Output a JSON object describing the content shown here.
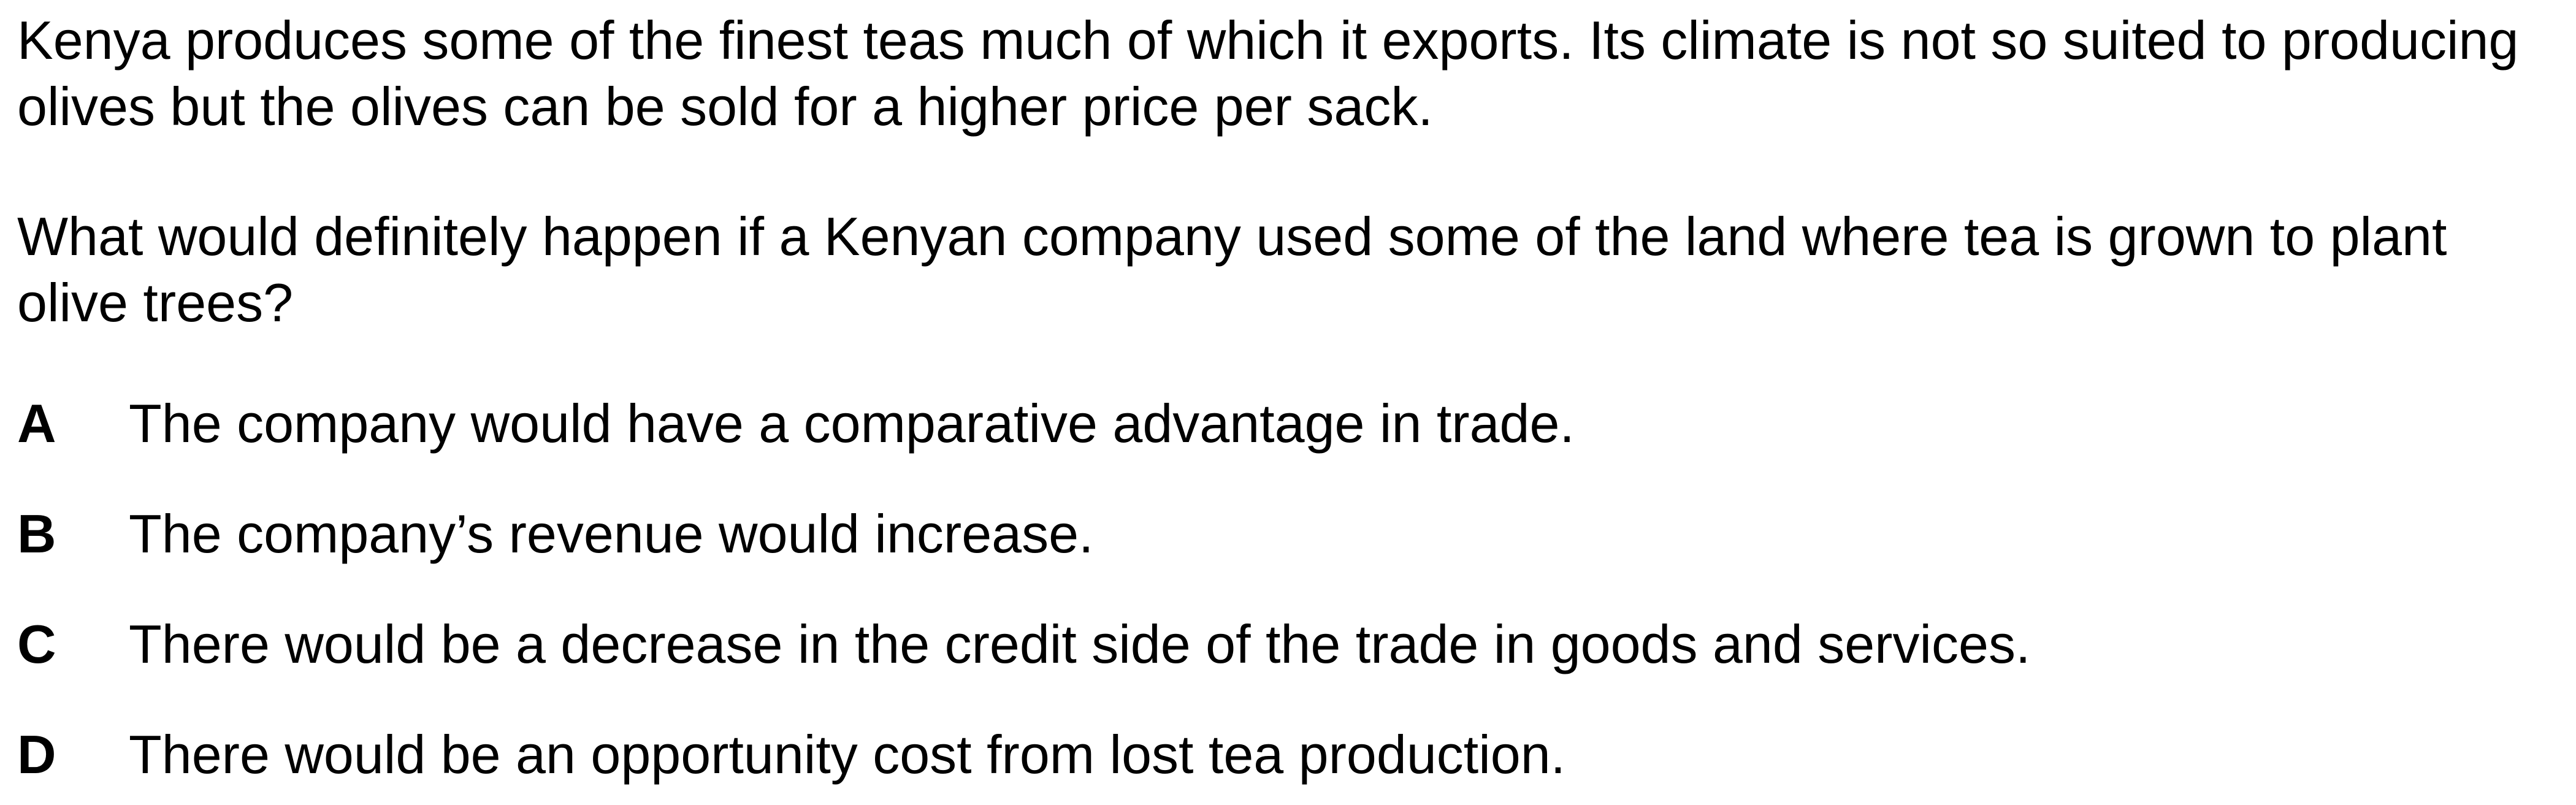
{
  "intro": "Kenya produces some of the finest teas much of which it exports. Its climate is not so suited to producing olives but the olives can be sold for a higher price per sack.",
  "question": "What would definitely happen if a Kenyan company used some of the land where tea is grown to plant olive trees?",
  "options": [
    {
      "letter": "A",
      "text": "The company would have a comparative advantage in trade."
    },
    {
      "letter": "B",
      "text": "The company’s revenue would increase."
    },
    {
      "letter": "C",
      "text": "There would be a decrease in the credit side of the trade in goods and services."
    },
    {
      "letter": "D",
      "text": "There would be an opportunity cost from lost tea production."
    }
  ]
}
